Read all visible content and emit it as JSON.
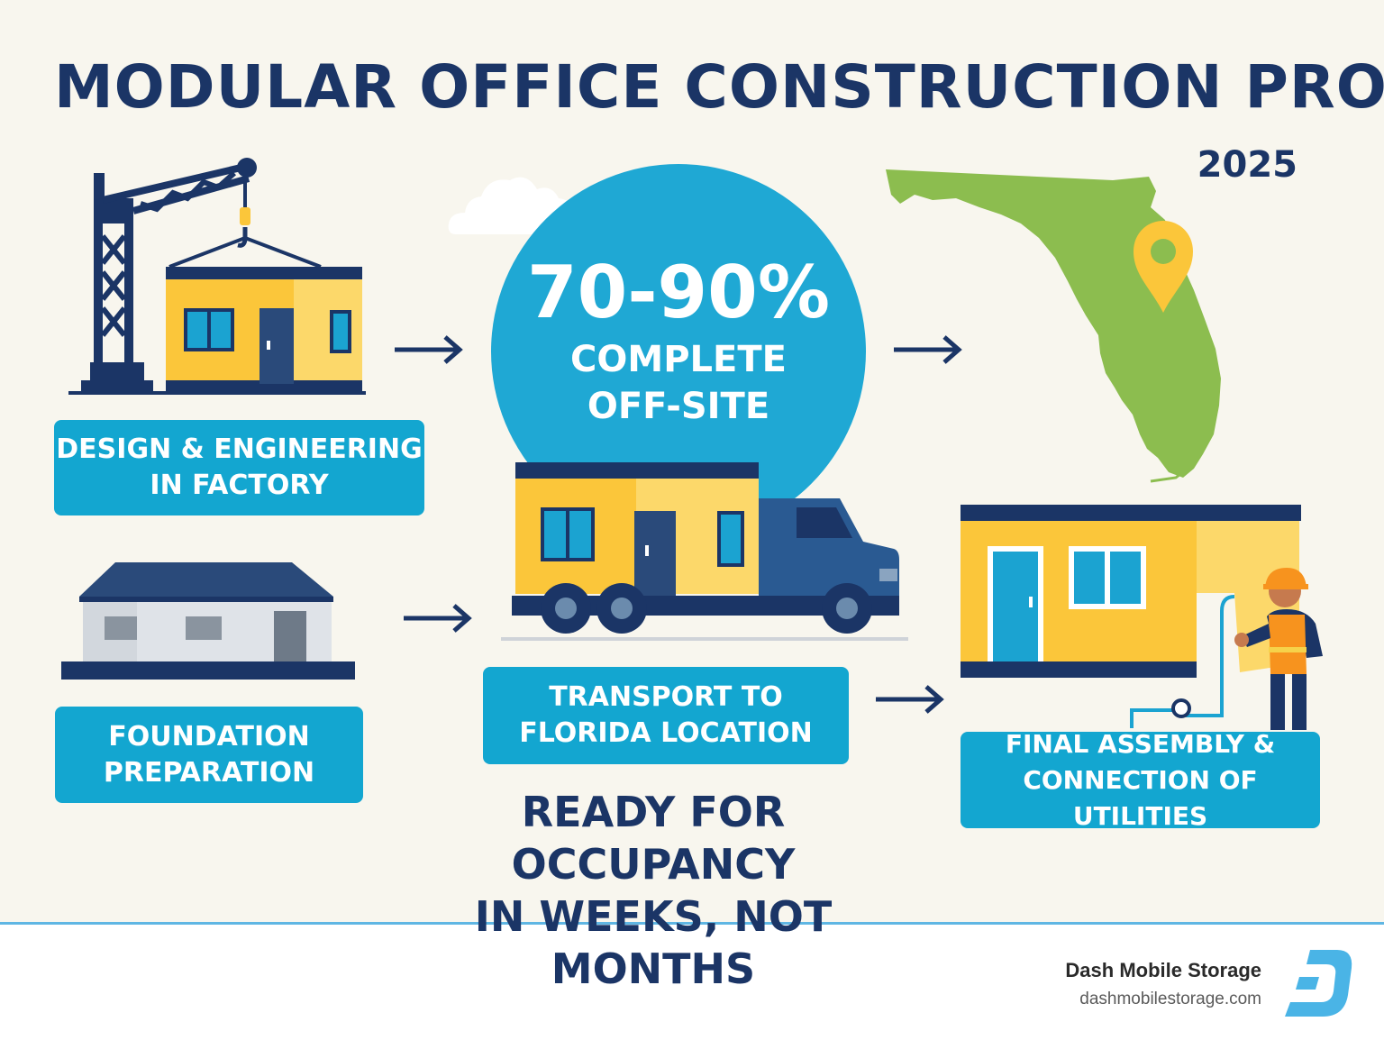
{
  "title": "MODULAR OFFICE CONSTRUCTION PROCESS",
  "year": "2025",
  "highlight": {
    "percent": "70-90%",
    "line1": "COMPLETE",
    "line2": "OFF-SITE"
  },
  "steps": [
    {
      "line1": "DESIGN & ENGINEERING",
      "line2": "IN FACTORY"
    },
    {
      "line1": "FOUNDATION",
      "line2": "PREPARATION"
    },
    {
      "line1": "TRANSPORT TO",
      "line2": "FLORIDA LOCATION"
    },
    {
      "line1": "FINAL ASSEMBLY &",
      "line2": "CONNECTION OF UTILITIES"
    }
  ],
  "tagline": {
    "line1": "READY FOR OCCUPANCY",
    "line2": "IN WEEKS, NOT MONTHS"
  },
  "brand": {
    "name": "Dash Mobile Storage",
    "url": "dashmobilestorage.com"
  },
  "icons": [
    "crane-module-icon",
    "cloud-icon",
    "florida-map-icon",
    "location-pin-icon",
    "foundation-building-icon",
    "truck-module-icon",
    "worker-icon",
    "dash-logo-icon",
    "arrow-right-icon"
  ],
  "colors": {
    "navy": "#1b3566",
    "cyan": "#13a6d0",
    "yellow": "#fbc63a",
    "green": "#8cbd4f",
    "background": "#f8f6ee"
  }
}
